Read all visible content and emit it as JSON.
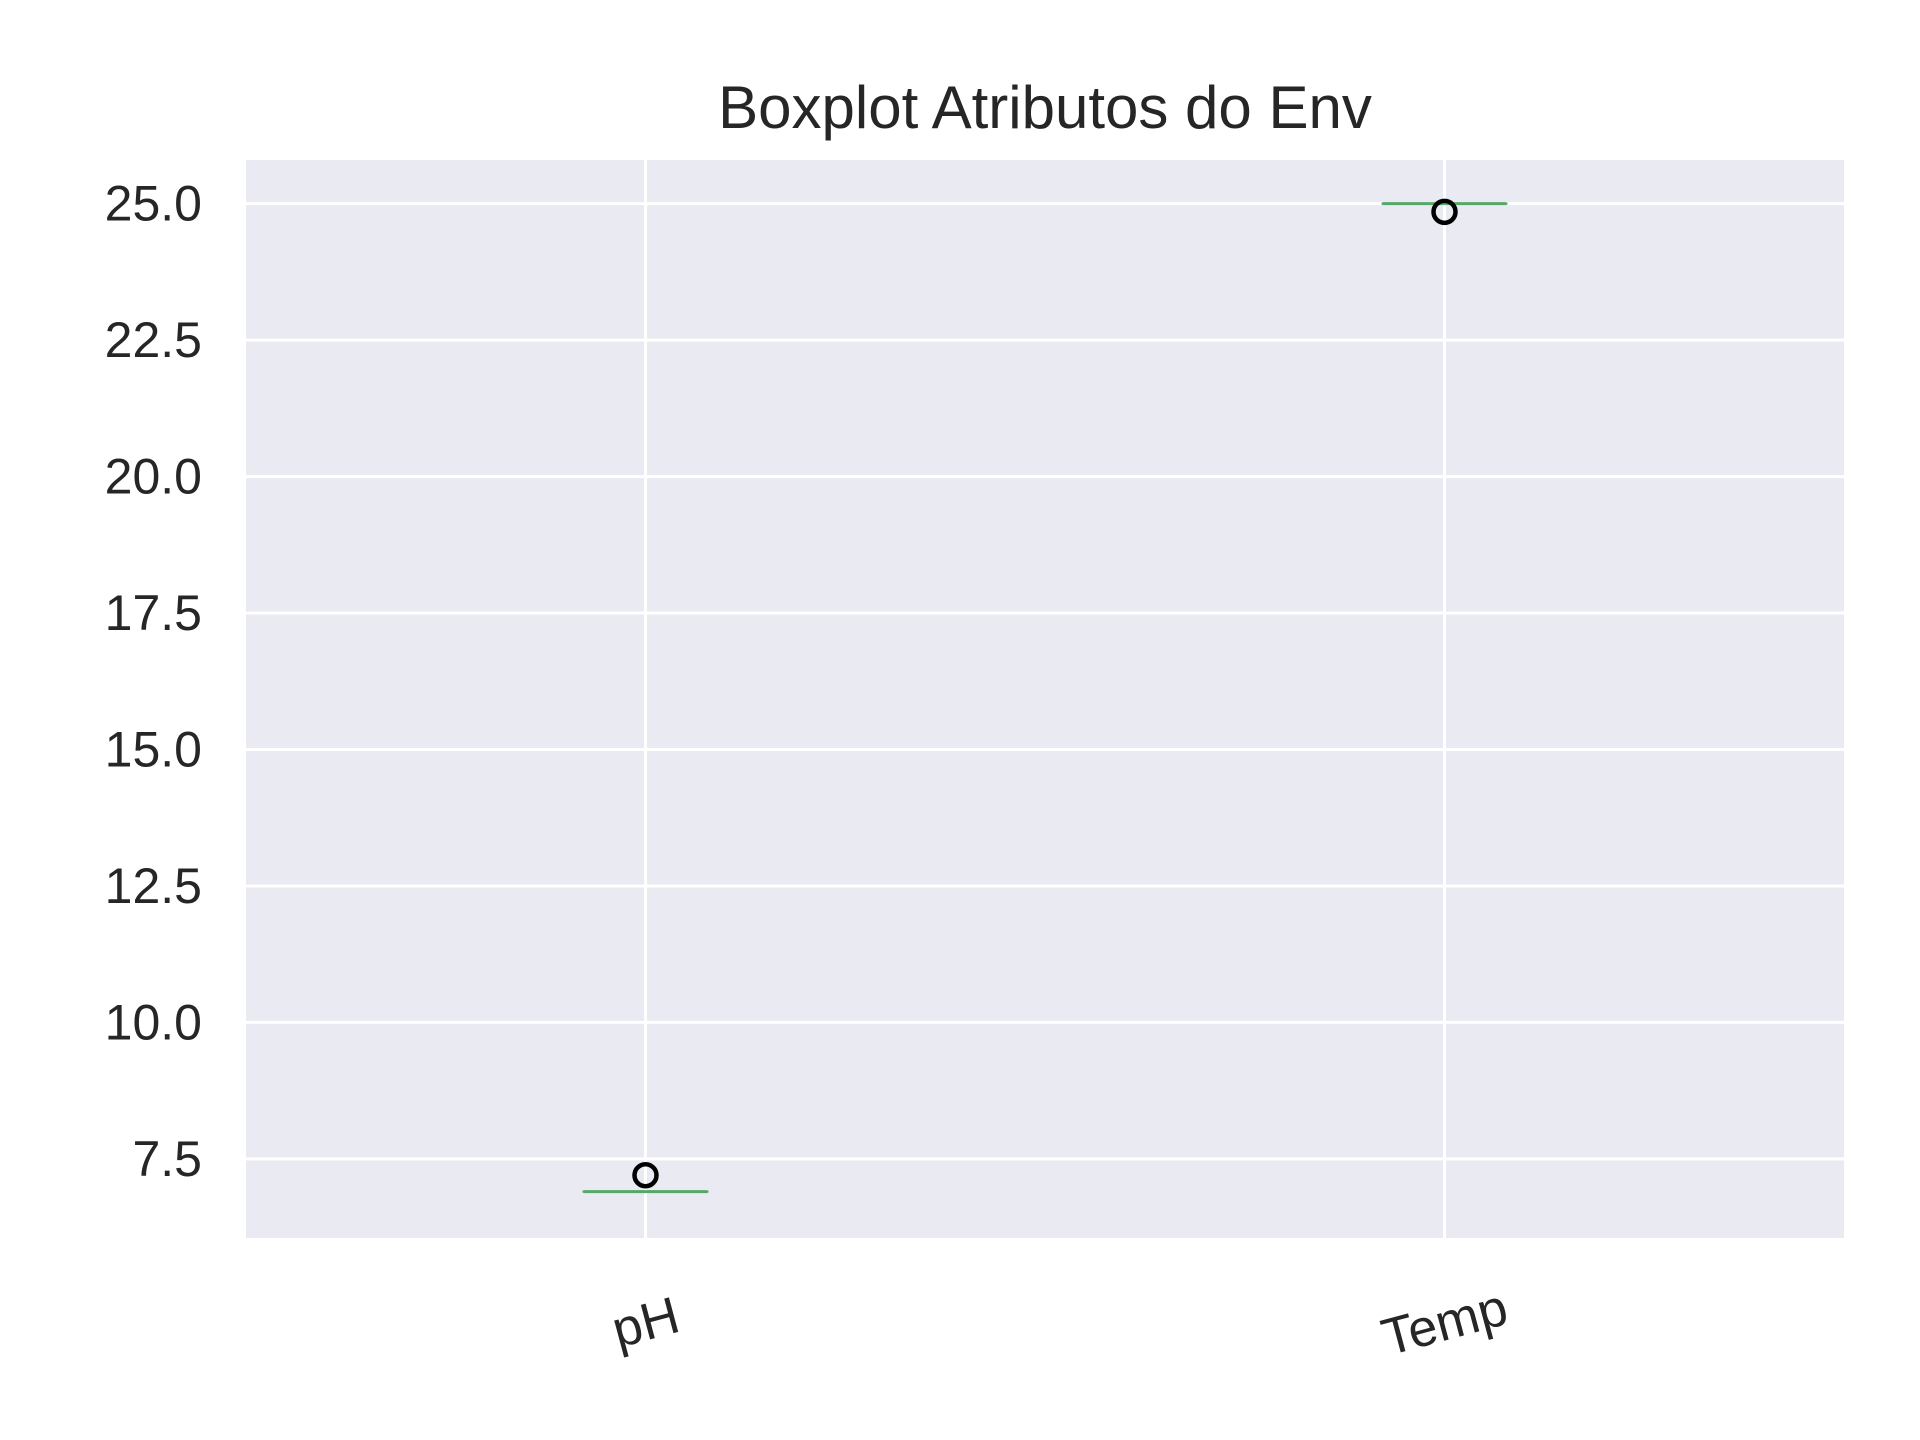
{
  "chart_data": {
    "type": "boxplot",
    "title": "Boxplot Atributos do Env",
    "xlabel": "",
    "ylabel": "",
    "categories": [
      "pH",
      "Temp"
    ],
    "boxes": [
      {
        "category": "pH",
        "median": 6.9,
        "q1": 6.9,
        "q3": 6.9,
        "whisker_low": 6.9,
        "whisker_high": 6.9,
        "outliers": [
          7.2
        ]
      },
      {
        "category": "Temp",
        "median": 25.0,
        "q1": 25.0,
        "q3": 25.0,
        "whisker_low": 25.0,
        "whisker_high": 25.0,
        "outliers": [
          24.85
        ]
      }
    ],
    "yticks": [
      "7.5",
      "10.0",
      "12.5",
      "15.0",
      "17.5",
      "20.0",
      "22.5",
      "25.0"
    ],
    "ylim": [
      6.05,
      25.8
    ],
    "grid": true,
    "xtick_rotation": -15,
    "colors": {
      "plot_background": "#eaeaf2",
      "grid": "#ffffff",
      "median_line": "#55a868",
      "outlier_edge": "#000000",
      "text": "#262626"
    }
  }
}
